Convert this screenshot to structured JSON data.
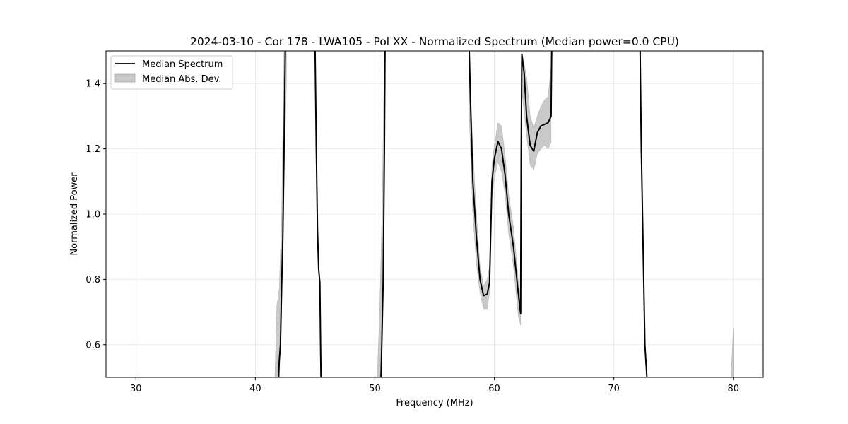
{
  "chart_data": {
    "type": "line",
    "title": "2024-03-10 - Cor 178 - LWA105 - Pol XX - Normalized Spectrum (Median power=0.0 CPU)",
    "xlabel": "Frequency (MHz)",
    "ylabel": "Normalized Power",
    "xlim": [
      27.5,
      82.5
    ],
    "ylim": [
      0.5,
      1.5
    ],
    "xticks": [
      30,
      40,
      50,
      60,
      70,
      80
    ],
    "yticks": [
      0.6,
      0.8,
      1.0,
      1.2,
      1.4
    ],
    "grid": true,
    "legend_position": "upper-left",
    "series": [
      {
        "name": "Median Spectrum",
        "color": "#000000",
        "segments": [
          [
            [
              41.9,
              0.45
            ],
            [
              42.0,
              0.55
            ],
            [
              42.1,
              0.6
            ],
            [
              42.2,
              0.78
            ],
            [
              42.3,
              0.93
            ],
            [
              42.4,
              1.2
            ],
            [
              42.5,
              1.5
            ]
          ],
          [
            [
              45.0,
              1.5
            ],
            [
              45.1,
              1.2
            ],
            [
              45.2,
              0.95
            ],
            [
              45.3,
              0.83
            ],
            [
              45.4,
              0.79
            ],
            [
              45.45,
              0.62
            ],
            [
              45.5,
              0.48
            ]
          ],
          [
            [
              50.5,
              0.48
            ],
            [
              50.55,
              0.55
            ],
            [
              50.7,
              0.8
            ],
            [
              50.8,
              1.2
            ],
            [
              50.85,
              1.5
            ]
          ],
          [
            [
              57.9,
              1.5
            ],
            [
              58.0,
              1.35
            ],
            [
              58.2,
              1.1
            ],
            [
              58.5,
              0.93
            ],
            [
              58.8,
              0.8
            ],
            [
              59.1,
              0.75
            ],
            [
              59.4,
              0.755
            ],
            [
              59.6,
              0.79
            ],
            [
              59.8,
              1.1
            ],
            [
              60.0,
              1.17
            ],
            [
              60.3,
              1.222
            ],
            [
              60.6,
              1.2
            ],
            [
              60.9,
              1.12
            ],
            [
              61.2,
              1.0
            ],
            [
              61.6,
              0.9
            ],
            [
              62.0,
              0.76
            ],
            [
              62.2,
              0.695
            ],
            [
              62.25,
              1.2
            ],
            [
              62.3,
              1.49
            ],
            [
              62.5,
              1.43
            ],
            [
              62.7,
              1.3
            ],
            [
              63.0,
              1.21
            ],
            [
              63.3,
              1.193
            ],
            [
              63.6,
              1.25
            ],
            [
              63.9,
              1.27
            ],
            [
              64.2,
              1.275
            ],
            [
              64.5,
              1.28
            ],
            [
              64.75,
              1.3
            ],
            [
              64.8,
              1.5
            ]
          ],
          [
            [
              72.2,
              1.5
            ],
            [
              72.3,
              1.2
            ],
            [
              72.5,
              0.8
            ],
            [
              72.6,
              0.6
            ],
            [
              72.8,
              0.48
            ]
          ]
        ]
      },
      {
        "name": "Median Abs. Dev.",
        "type": "area",
        "color": "#c0c0c0",
        "segments": [
          [
            [
              41.6,
              0.45,
              0.45
            ],
            [
              41.8,
              0.5,
              0.72
            ],
            [
              42.0,
              0.52,
              0.77
            ],
            [
              42.2,
              0.7,
              1.0
            ],
            [
              42.4,
              1.1,
              1.5
            ],
            [
              42.6,
              1.4,
              1.5
            ]
          ],
          [
            [
              80.0,
              0.45,
              0.65
            ],
            [
              79.8,
              0.45,
              0.5
            ]
          ],
          [
            [
              50.2,
              0.45,
              0.5
            ],
            [
              50.4,
              0.45,
              0.7
            ],
            [
              50.6,
              0.6,
              1.0
            ],
            [
              50.8,
              1.1,
              1.5
            ]
          ],
          [
            [
              57.9,
              1.3,
              1.5
            ],
            [
              58.2,
              1.0,
              1.2
            ],
            [
              58.5,
              0.85,
              1.0
            ],
            [
              58.8,
              0.76,
              0.84
            ],
            [
              59.1,
              0.71,
              0.78
            ],
            [
              59.4,
              0.71,
              0.8
            ],
            [
              59.6,
              0.76,
              0.84
            ],
            [
              59.8,
              1.05,
              1.15
            ],
            [
              60.0,
              1.11,
              1.21
            ],
            [
              60.3,
              1.16,
              1.28
            ],
            [
              60.6,
              1.13,
              1.27
            ],
            [
              60.9,
              1.06,
              1.18
            ],
            [
              61.2,
              0.94,
              1.06
            ],
            [
              61.6,
              0.84,
              0.96
            ],
            [
              62.0,
              0.69,
              0.8
            ],
            [
              62.2,
              0.66,
              0.73
            ],
            [
              62.3,
              1.38,
              1.5
            ],
            [
              62.7,
              1.24,
              1.42
            ],
            [
              63.0,
              1.15,
              1.3
            ],
            [
              63.3,
              1.135,
              1.265
            ],
            [
              63.6,
              1.185,
              1.3
            ],
            [
              63.9,
              1.2,
              1.33
            ],
            [
              64.2,
              1.21,
              1.35
            ],
            [
              64.5,
              1.2,
              1.36
            ],
            [
              64.75,
              1.22,
              1.45
            ]
          ]
        ]
      }
    ]
  }
}
